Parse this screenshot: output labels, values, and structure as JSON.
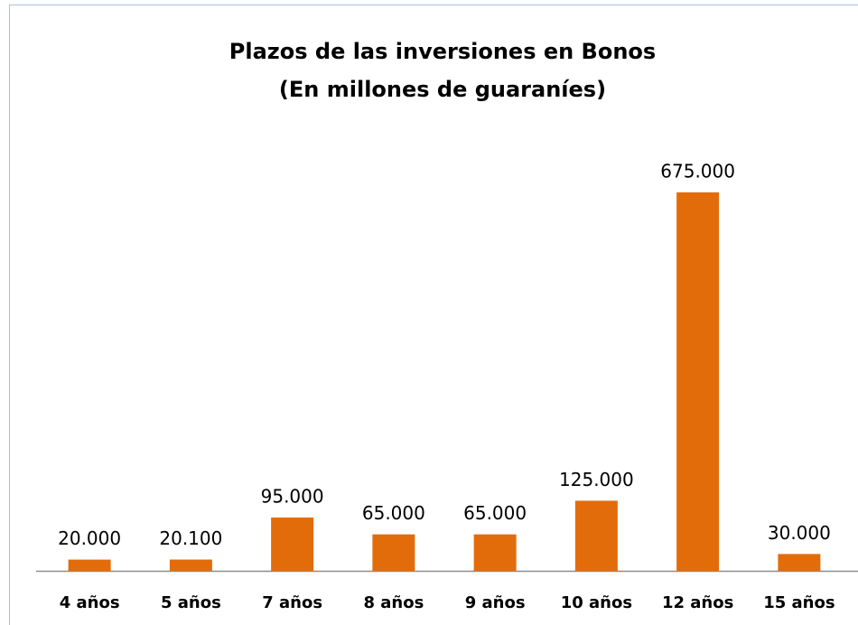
{
  "chart_data": {
    "type": "bar",
    "title": "Plazos de las inversiones en Bonos",
    "subtitle": "(En millones de guaraníes)",
    "categories": [
      "4 años",
      "5 años",
      "7 años",
      "8 años",
      "9 años",
      "10 años",
      "12 años",
      "15 años"
    ],
    "values": [
      20000,
      20100,
      95000,
      65000,
      65000,
      125000,
      675000,
      30000
    ],
    "value_labels": [
      "20.000",
      "20.100",
      "95.000",
      "65.000",
      "65.000",
      "125.000",
      "675.000",
      "30.000"
    ],
    "color": "#e36c0a"
  }
}
